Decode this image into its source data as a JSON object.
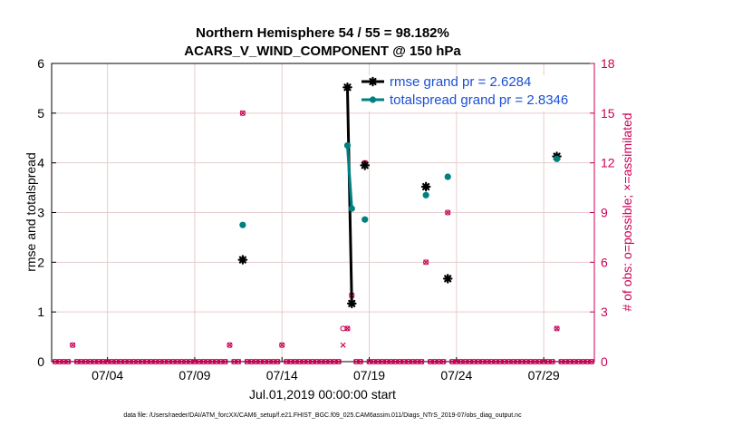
{
  "chart_data": {
    "type": "line",
    "title": "Northern Hemisphere 54 / 55 = 98.182%",
    "subtitle": "ACARS_V_WIND_COMPONENT @ 150 hPa",
    "xlabel": "Jul.01,2019 00:00:00 start",
    "ylabel_left": "rmse and totalspread",
    "ylabel_right": "# of obs: o=possible; ×=assimilated",
    "footer": "data file: /Users/raeder/DAI/ATM_forcXX/CAM6_setup/f.e21.FHIST_BGC.f09_025.CAM6assim.011/Diags_NTrS_2019-07/obs_diag_output.nc",
    "xlim": [
      0.8,
      31.9
    ],
    "ylim_left": [
      0,
      6
    ],
    "ylim_right": [
      0,
      18
    ],
    "x_ticks": [
      {
        "value": 4,
        "label": "07/04"
      },
      {
        "value": 9,
        "label": "07/09"
      },
      {
        "value": 14,
        "label": "07/14"
      },
      {
        "value": 19,
        "label": "07/19"
      },
      {
        "value": 24,
        "label": "07/24"
      },
      {
        "value": 29,
        "label": "07/29"
      }
    ],
    "y_ticks_left": [
      "0",
      "1",
      "2",
      "3",
      "4",
      "5",
      "6"
    ],
    "y_ticks_right": [
      "0",
      "3",
      "6",
      "9",
      "12",
      "15",
      "18"
    ],
    "grid": true,
    "legend_position": "top-right",
    "colors": {
      "rmse": "#000000",
      "spread": "#008080",
      "obs": "#cc0055",
      "grid": "#e6cccc"
    },
    "series": [
      {
        "name": "rmse grand pr = 2.6284",
        "key": "rmse",
        "axis": "left",
        "points": [
          [
            11.75,
            2.05
          ],
          [
            17.75,
            5.52
          ],
          [
            18.0,
            1.17
          ],
          [
            18.75,
            3.95
          ],
          [
            22.25,
            3.52
          ],
          [
            23.5,
            1.67
          ],
          [
            29.75,
            4.13
          ]
        ],
        "lines": [
          [
            [
              17.75,
              5.52
            ],
            [
              18.0,
              1.17
            ]
          ]
        ]
      },
      {
        "name": "totalspread grand pr = 2.8346",
        "key": "spread",
        "axis": "left",
        "points": [
          [
            11.75,
            2.75
          ],
          [
            17.75,
            4.35
          ],
          [
            18.0,
            3.08
          ],
          [
            18.75,
            2.86
          ],
          [
            22.25,
            3.35
          ],
          [
            23.5,
            3.72
          ],
          [
            29.75,
            4.08
          ]
        ],
        "lines": [
          [
            [
              17.75,
              4.35
            ],
            [
              18.0,
              3.08
            ]
          ]
        ]
      }
    ],
    "obs_counts": {
      "axis": "right",
      "start": 1.0,
      "step": 0.25,
      "count": 124,
      "nonzero_possible": [
        [
          2.0,
          1
        ],
        [
          11.0,
          1
        ],
        [
          11.75,
          15
        ],
        [
          14.0,
          1
        ],
        [
          17.5,
          2
        ],
        [
          17.75,
          2
        ],
        [
          18.0,
          4
        ],
        [
          18.75,
          12
        ],
        [
          22.25,
          6
        ],
        [
          23.5,
          9
        ],
        [
          29.75,
          2
        ]
      ],
      "nonzero_assimilated": [
        [
          2.0,
          1
        ],
        [
          11.0,
          1
        ],
        [
          11.75,
          15
        ],
        [
          14.0,
          1
        ],
        [
          17.5,
          1
        ],
        [
          17.75,
          2
        ],
        [
          18.0,
          4
        ],
        [
          18.75,
          12
        ],
        [
          22.25,
          6
        ],
        [
          23.5,
          9
        ],
        [
          29.75,
          2
        ]
      ]
    }
  }
}
